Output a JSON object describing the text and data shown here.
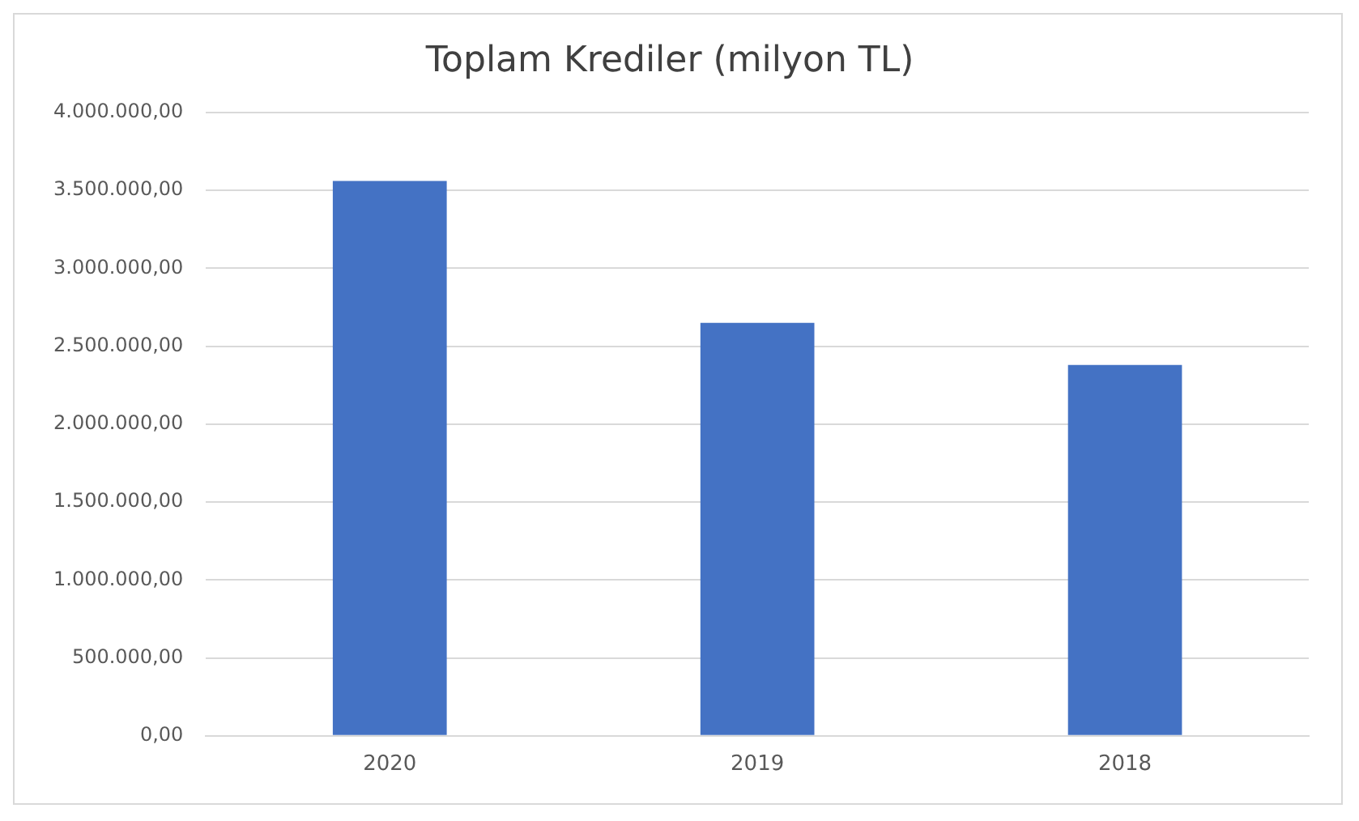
{
  "chart_data": {
    "type": "bar",
    "title": "Toplam Krediler (milyon TL)",
    "categories": [
      "2020",
      "2019",
      "2018"
    ],
    "values": [
      3560000,
      2650000,
      2380000
    ],
    "color": "#4472c4",
    "ylim": [
      0,
      4000000
    ],
    "yticks": [
      {
        "value": 0,
        "label": "0,00"
      },
      {
        "value": 500000,
        "label": "500.000,00"
      },
      {
        "value": 1000000,
        "label": "1.000.000,00"
      },
      {
        "value": 1500000,
        "label": "1.500.000,00"
      },
      {
        "value": 2000000,
        "label": "2.000.000,00"
      },
      {
        "value": 2500000,
        "label": "2.500.000,00"
      },
      {
        "value": 3000000,
        "label": "3.000.000,00"
      },
      {
        "value": 3500000,
        "label": "3.500.000,00"
      },
      {
        "value": 4000000,
        "label": "4.000.000,00"
      }
    ],
    "grid": "y"
  }
}
